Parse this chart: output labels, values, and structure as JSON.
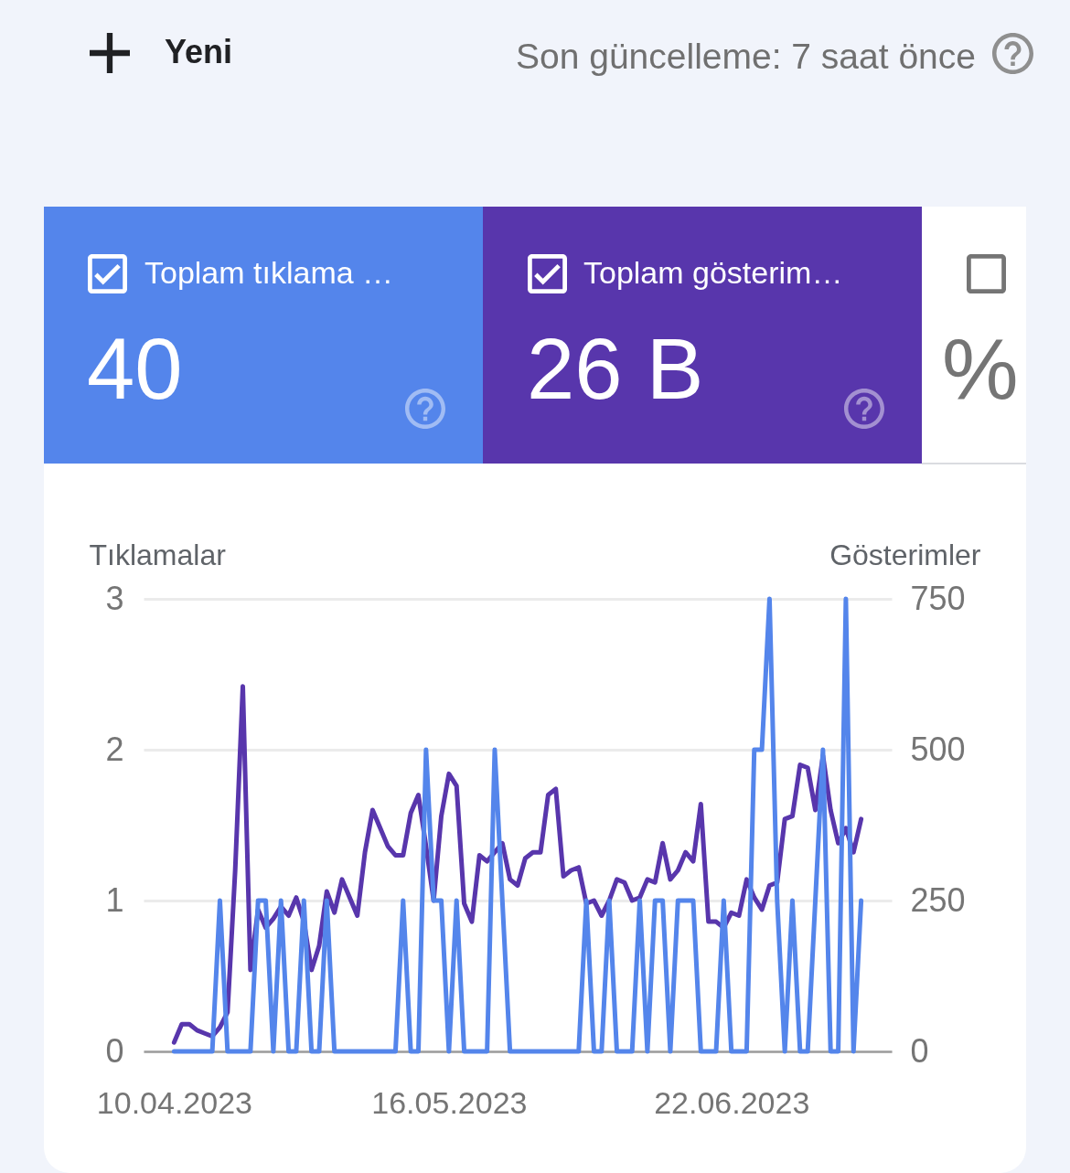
{
  "chart_data": {
    "type": "line",
    "x": [
      "2023-04-10",
      "2023-04-11",
      "2023-04-12",
      "2023-04-13",
      "2023-04-14",
      "2023-04-15",
      "2023-04-16",
      "2023-04-17",
      "2023-04-18",
      "2023-04-19",
      "2023-04-20",
      "2023-04-21",
      "2023-04-22",
      "2023-04-23",
      "2023-04-24",
      "2023-04-25",
      "2023-04-26",
      "2023-04-27",
      "2023-04-28",
      "2023-04-29",
      "2023-04-30",
      "2023-05-01",
      "2023-05-02",
      "2023-05-03",
      "2023-05-04",
      "2023-05-05",
      "2023-05-06",
      "2023-05-07",
      "2023-05-08",
      "2023-05-09",
      "2023-05-10",
      "2023-05-11",
      "2023-05-12",
      "2023-05-13",
      "2023-05-14",
      "2023-05-15",
      "2023-05-16",
      "2023-05-17",
      "2023-05-18",
      "2023-05-19",
      "2023-05-20",
      "2023-05-21",
      "2023-05-22",
      "2023-05-23",
      "2023-05-24",
      "2023-05-25",
      "2023-05-26",
      "2023-05-27",
      "2023-05-28",
      "2023-05-29",
      "2023-05-30",
      "2023-05-31",
      "2023-06-01",
      "2023-06-02",
      "2023-06-03",
      "2023-06-04",
      "2023-06-05",
      "2023-06-06",
      "2023-06-07",
      "2023-06-08",
      "2023-06-09",
      "2023-06-10",
      "2023-06-11",
      "2023-06-12",
      "2023-06-13",
      "2023-06-14",
      "2023-06-15",
      "2023-06-16",
      "2023-06-17",
      "2023-06-18",
      "2023-06-19",
      "2023-06-20",
      "2023-06-21",
      "2023-06-22",
      "2023-06-23",
      "2023-06-24",
      "2023-06-25",
      "2023-06-26",
      "2023-06-27",
      "2023-06-28",
      "2023-06-29",
      "2023-06-30",
      "2023-07-01",
      "2023-07-02",
      "2023-07-03",
      "2023-07-04",
      "2023-07-05",
      "2023-07-06",
      "2023-07-07",
      "2023-07-08",
      "2023-07-09"
    ],
    "series": [
      {
        "color": "#5836ac",
        "axis": "y2",
        "values": [
          15,
          45,
          45,
          35,
          30,
          25,
          40,
          65,
          300,
          605,
          135,
          235,
          205,
          220,
          240,
          225,
          255,
          215,
          135,
          175,
          265,
          230,
          285,
          255,
          225,
          330,
          400,
          370,
          340,
          325,
          325,
          395,
          425,
          340,
          250,
          390,
          460,
          440,
          245,
          215,
          325,
          315,
          330,
          345,
          285,
          275,
          320,
          330,
          330,
          425,
          435,
          290,
          300,
          305,
          245,
          250,
          225,
          250,
          285,
          280,
          250,
          255,
          285,
          280,
          345,
          285,
          300,
          330,
          315,
          410,
          215,
          215,
          205,
          230,
          225,
          285,
          255,
          235,
          275,
          280,
          385,
          390,
          475,
          470,
          400,
          490,
          400,
          345,
          370,
          330,
          385
        ]
      },
      {
        "color": "#5485eb",
        "values": [
          0,
          0,
          0,
          0,
          0,
          0,
          1,
          0,
          0,
          0,
          0,
          1,
          1,
          0,
          1,
          0,
          0,
          1,
          0,
          0,
          1,
          0,
          0,
          0,
          0,
          0,
          0,
          0,
          0,
          0,
          1,
          0,
          0,
          2,
          1,
          1,
          0,
          1,
          0,
          0,
          0,
          0,
          2,
          1,
          0,
          0,
          0,
          0,
          0,
          0,
          0,
          0,
          0,
          0,
          1,
          0,
          0,
          1,
          0,
          0,
          0,
          1,
          0,
          1,
          1,
          0,
          1,
          1,
          1,
          0,
          0,
          0,
          1,
          0,
          0,
          0,
          2,
          2,
          3,
          1,
          0,
          1,
          0,
          0,
          1,
          2,
          0,
          0,
          3,
          0,
          1
        ]
      }
    ],
    "ylabel": "Tıklamalar",
    "y2label": "Gösterimler",
    "ylim": [
      0,
      3
    ],
    "yticks": [
      0,
      1,
      2,
      3
    ],
    "y2lim": [
      0,
      750
    ],
    "y2ticks": [
      0,
      250,
      500,
      750
    ],
    "xlim": [
      "2023-04-06",
      "2023-07-13"
    ],
    "xticks": [
      {
        "value": "2023-04-10",
        "label": "10.04.2023"
      },
      {
        "value": "2023-05-16",
        "label": "16.05.2023"
      },
      {
        "value": "2023-06-22",
        "label": "22.06.2023"
      }
    ],
    "grid": "y",
    "annotations": [
      "Yeni",
      "Son güncelleme: 7 saat önce",
      "Toplam tıklama …",
      "40",
      "Toplam gösterim…",
      "26 B",
      "%"
    ]
  }
}
